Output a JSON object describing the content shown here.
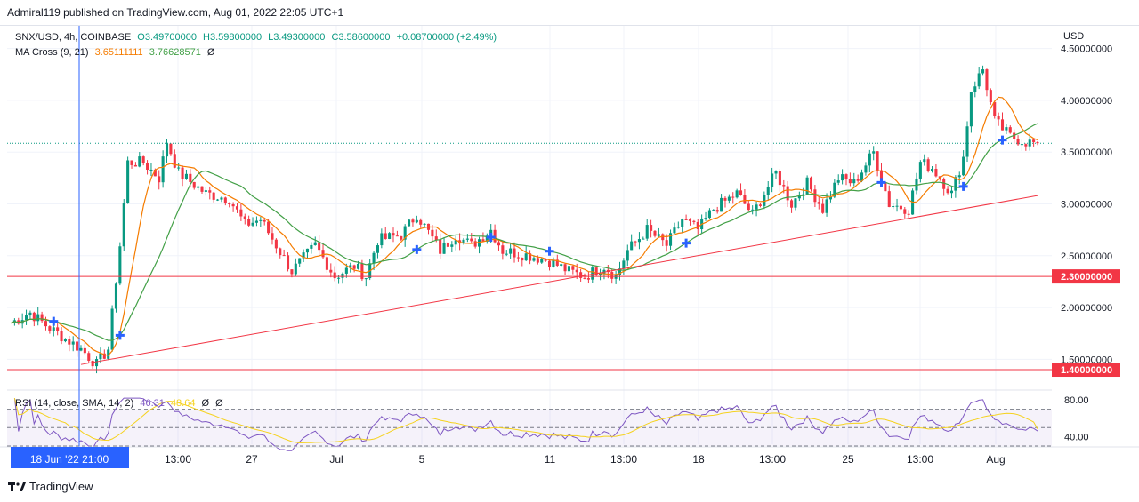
{
  "header": {
    "publish_text": "Admiral119 published on TradingView.com, Aug 01, 2022 22:05 UTC+1"
  },
  "legend": {
    "symbol": "SNX/USD, 4h, COINBASE",
    "open": "O3.49700000",
    "high": "H3.59800000",
    "low": "L3.49300000",
    "close": "C3.58600000",
    "change": "+0.08700000 (+2.49%)",
    "ma_label": "MA Cross (9, 21)",
    "ma_fast": "3.65111111",
    "ma_slow": "3.76628571",
    "ma_zero": "Ø",
    "rsi_label": "RSI (14, close, SMA, 14, 2)",
    "rsi_value": "46.31",
    "rsi_ma": "48.64",
    "rsi_zero1": "Ø",
    "rsi_zero2": "Ø"
  },
  "footer": {
    "brand": "TradingView"
  },
  "colors": {
    "up": "#089981",
    "down": "#f23645",
    "ma_fast": "#f57c00",
    "ma_slow": "#43a047",
    "support": "#f23645",
    "trendline": "#f23645",
    "rsi": "#7e57c2",
    "rsi_ma": "#f5d21e",
    "cross_marker": "#2962ff"
  },
  "chart_data": {
    "type": "candlestick",
    "currency_label": "USD",
    "y_ticks": [
      "4.50000000",
      "4.00000000",
      "3.50000000",
      "3.00000000",
      "2.50000000",
      "2.00000000",
      "1.50000000"
    ],
    "y_tick_values": [
      4.5,
      4.0,
      3.5,
      3.0,
      2.5,
      2.0,
      1.5
    ],
    "ylim": [
      1.22,
      4.72
    ],
    "x_ticks": [
      "13:00",
      "27",
      "Jul",
      "5",
      "11",
      "13:00",
      "18",
      "13:00",
      "25",
      "13:00",
      "Aug"
    ],
    "crosshair_label": "18 Jun '22   21:00",
    "support_levels": [
      {
        "value": 2.3,
        "label": "2.30000000"
      },
      {
        "value": 1.4,
        "label": "1.40000000"
      }
    ],
    "last_price": 3.586,
    "trendline": [
      {
        "bar": 18,
        "price": 1.45
      },
      {
        "bar": 263,
        "price": 3.08
      }
    ],
    "anchors": [
      [
        0,
        1.85
      ],
      [
        5,
        1.95
      ],
      [
        10,
        1.8
      ],
      [
        18,
        1.6
      ],
      [
        22,
        1.45
      ],
      [
        25,
        1.6
      ],
      [
        28,
        2.6
      ],
      [
        30,
        3.4
      ],
      [
        34,
        3.4
      ],
      [
        38,
        3.25
      ],
      [
        40,
        3.6
      ],
      [
        43,
        3.3
      ],
      [
        50,
        3.1
      ],
      [
        56,
        3.05
      ],
      [
        60,
        2.8
      ],
      [
        64,
        2.85
      ],
      [
        68,
        2.6
      ],
      [
        72,
        2.35
      ],
      [
        78,
        2.6
      ],
      [
        83,
        2.3
      ],
      [
        88,
        2.4
      ],
      [
        91,
        2.3
      ],
      [
        94,
        2.65
      ],
      [
        100,
        2.7
      ],
      [
        104,
        2.9
      ],
      [
        110,
        2.55
      ],
      [
        114,
        2.7
      ],
      [
        118,
        2.6
      ],
      [
        123,
        2.75
      ],
      [
        126,
        2.55
      ],
      [
        133,
        2.5
      ],
      [
        138,
        2.45
      ],
      [
        143,
        2.35
      ],
      [
        147,
        2.3
      ],
      [
        152,
        2.4
      ],
      [
        155,
        2.3
      ],
      [
        158,
        2.55
      ],
      [
        163,
        2.75
      ],
      [
        168,
        2.6
      ],
      [
        172,
        2.85
      ],
      [
        176,
        2.75
      ],
      [
        180,
        2.95
      ],
      [
        186,
        3.1
      ],
      [
        190,
        2.9
      ],
      [
        196,
        3.3
      ],
      [
        200,
        3.0
      ],
      [
        204,
        3.2
      ],
      [
        208,
        2.95
      ],
      [
        212,
        3.25
      ],
      [
        216,
        3.2
      ],
      [
        221,
        3.5
      ],
      [
        225,
        3.0
      ],
      [
        230,
        2.95
      ],
      [
        233,
        3.4
      ],
      [
        236,
        3.35
      ],
      [
        241,
        3.1
      ],
      [
        244,
        3.45
      ],
      [
        246,
        4.1
      ],
      [
        249,
        4.3
      ],
      [
        252,
        3.8
      ],
      [
        256,
        3.65
      ],
      [
        260,
        3.6
      ],
      [
        262,
        3.586
      ]
    ],
    "n_bars": 263,
    "rsi": {
      "levels": [
        80,
        40
      ],
      "level_labels": [
        "80.00",
        "40.00"
      ],
      "band": [
        70,
        30
      ],
      "last": 46.31,
      "last_ma": 48.64
    },
    "ma_cross_markers": [
      11,
      28,
      104,
      123,
      138,
      173,
      223,
      244,
      254
    ]
  }
}
